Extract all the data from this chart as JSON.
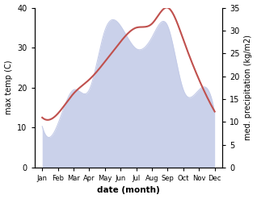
{
  "months": [
    "Jan",
    "Feb",
    "Mar",
    "Apr",
    "May",
    "Jun",
    "Jul",
    "Aug",
    "Sep",
    "Oct",
    "Nov",
    "Dec"
  ],
  "month_x": [
    1,
    2,
    3,
    4,
    5,
    6,
    7,
    8,
    9,
    10,
    11,
    12
  ],
  "temperature": [
    12.5,
    13.5,
    18.5,
    22.0,
    26.5,
    31.5,
    35.0,
    36.0,
    40.0,
    32.0,
    22.0,
    14.0
  ],
  "precipitation_mm": [
    9.0,
    9.5,
    17.0,
    17.0,
    30.0,
    31.0,
    26.0,
    28.5,
    31.0,
    17.0,
    17.0,
    12.0
  ],
  "temp_color": "#c0504d",
  "precip_fill_color": "#c5cce8",
  "left_ylim": [
    0,
    40
  ],
  "right_ylim": [
    0,
    35
  ],
  "left_yticks": [
    0,
    10,
    20,
    30,
    40
  ],
  "right_yticks": [
    0,
    5,
    10,
    15,
    20,
    25,
    30,
    35
  ],
  "xlabel": "date (month)",
  "ylabel_left": "max temp (C)",
  "ylabel_right": "med. precipitation (kg/m2)",
  "background_color": "#ffffff"
}
